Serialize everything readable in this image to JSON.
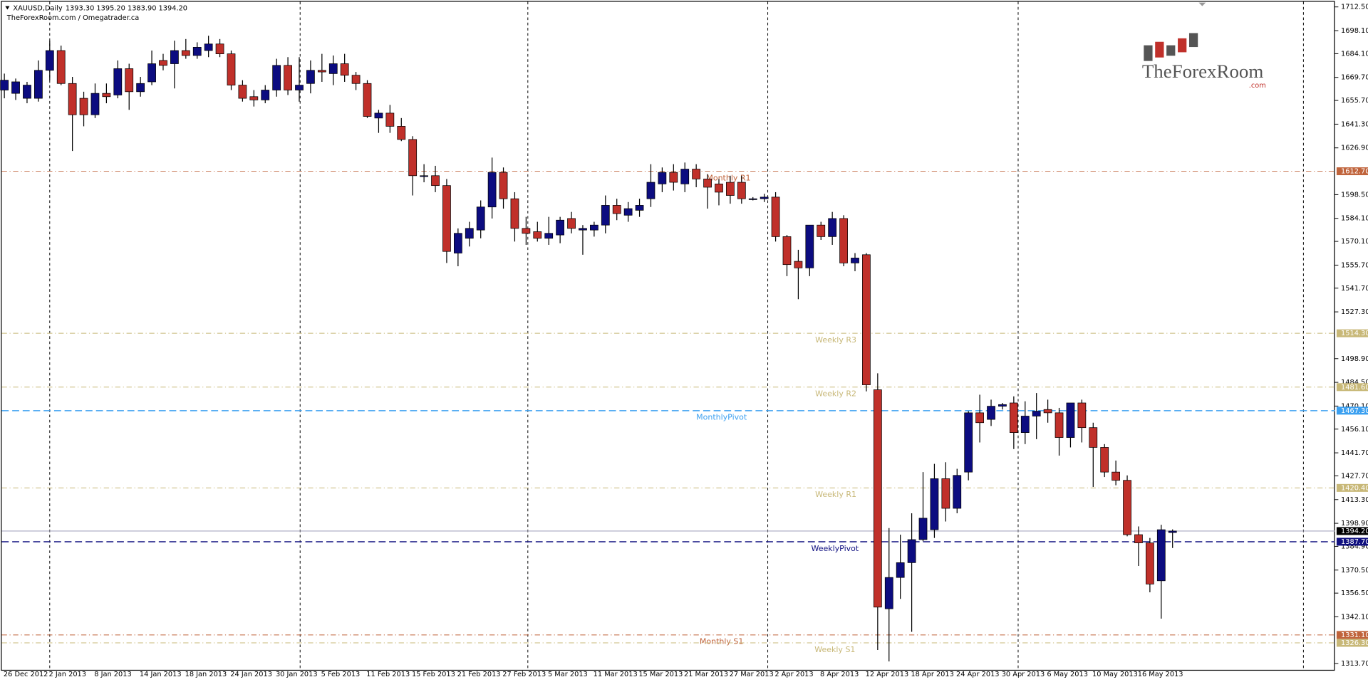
{
  "chart_data": {
    "type": "candlestick",
    "title": "XAUUSD,Daily",
    "ohlc_text": "1393.30 1395.20 1383.90 1394.20",
    "source": "TheForexRoom.com / Omegatrader.ca",
    "logo": {
      "name": "TheForexRoom",
      "suffix": ".com"
    },
    "categories": [
      "26 Dec 2012",
      null,
      null,
      null,
      "2 Jan 2013",
      null,
      null,
      null,
      "8 Jan 2013",
      null,
      null,
      null,
      "14 Jan 2013",
      null,
      null,
      null,
      "18 Jan 2013",
      null,
      null,
      null,
      "24 Jan 2013",
      null,
      null,
      null,
      "30 Jan 2013",
      null,
      null,
      null,
      "5 Feb 2013",
      null,
      null,
      null,
      "11 Feb 2013",
      null,
      null,
      null,
      "15 Feb 2013",
      null,
      null,
      null,
      "21 Feb 2013",
      null,
      null,
      null,
      "27 Feb 2013",
      null,
      null,
      null,
      "5 Mar 2013",
      null,
      null,
      null,
      "11 Mar 2013",
      null,
      null,
      null,
      "15 Mar 2013",
      null,
      null,
      null,
      "21 Mar 2013",
      null,
      null,
      null,
      "27 Mar 2013",
      null,
      null,
      null,
      "2 Apr 2013",
      null,
      null,
      null,
      "8 Apr 2013",
      null,
      null,
      null,
      "12 Apr 2013",
      null,
      null,
      null,
      "18 Apr 2013",
      null,
      null,
      null,
      "24 Apr 2013",
      null,
      null,
      null,
      "30 Apr 2013",
      null,
      null,
      null,
      "6 May 2013",
      null,
      null,
      null,
      "10 May 2013",
      null,
      null,
      null,
      "16 May 2013",
      null,
      null,
      null
    ],
    "open": [
      1662,
      1660,
      1657,
      1657,
      1674,
      1686,
      1666,
      1657,
      1647,
      1660,
      1659,
      1675,
      1661,
      1667,
      1680,
      1678,
      1686,
      1683,
      1686,
      1690,
      1684,
      1665,
      1658,
      1656,
      1662,
      1677,
      1662,
      1666,
      1674,
      1672,
      1678,
      1671,
      1666,
      1645,
      1648,
      1640,
      1632,
      1610,
      1610,
      1604,
      1563,
      1572,
      1577,
      1591,
      1612,
      1596,
      1578,
      1576,
      1572,
      1574,
      1584,
      1577,
      1577,
      1580,
      1592,
      1586,
      1589,
      1596,
      1605,
      1612,
      1605,
      1614,
      1608,
      1605,
      1606,
      1606,
      1596,
      1596,
      1597,
      1573,
      1558,
      1554,
      1580,
      1573,
      1584,
      1557,
      1562,
      1480,
      1347,
      1366,
      1375,
      1389,
      1395,
      1426,
      1408,
      1430,
      1466,
      1462,
      1470,
      1472,
      1454,
      1464,
      1468,
      1466,
      1451,
      1472,
      1457,
      1445,
      1430,
      1425,
      1392,
      1387,
      1364,
      1393.3
    ],
    "high": [
      1672,
      1669,
      1667,
      1680,
      1692,
      1689,
      1670,
      1661,
      1666,
      1666,
      1680,
      1678,
      1670,
      1686,
      1684,
      1692,
      1693,
      1691,
      1695,
      1693,
      1686,
      1668,
      1662,
      1665,
      1681,
      1682,
      1682,
      1680,
      1684,
      1683,
      1684,
      1673,
      1668,
      1650,
      1653,
      1645,
      1634,
      1617,
      1616,
      1608,
      1578,
      1582,
      1595,
      1621,
      1615,
      1600,
      1585,
      1582,
      1585,
      1585,
      1588,
      1580,
      1582,
      1598,
      1596,
      1594,
      1596,
      1617,
      1615,
      1617,
      1618,
      1617,
      1611,
      1608,
      1610,
      1610,
      1597,
      1599,
      1600,
      1574,
      1565,
      1580,
      1582,
      1588,
      1586,
      1563,
      1563,
      1490,
      1396,
      1392,
      1405,
      1430,
      1435,
      1436,
      1432,
      1467,
      1477,
      1474,
      1472,
      1476,
      1473,
      1478,
      1474,
      1469,
      1472,
      1474,
      1460,
      1447,
      1437,
      1428,
      1397,
      1390,
      1398,
      1395.2
    ],
    "low": [
      1657,
      1656,
      1654,
      1655,
      1668,
      1665,
      1625,
      1640,
      1645,
      1654,
      1657,
      1650,
      1658,
      1665,
      1674,
      1663,
      1681,
      1681,
      1682,
      1682,
      1662,
      1655,
      1652,
      1654,
      1658,
      1659,
      1655,
      1660,
      1667,
      1665,
      1667,
      1662,
      1645,
      1636,
      1636,
      1631,
      1598,
      1606,
      1600,
      1557,
      1555,
      1567,
      1572,
      1584,
      1590,
      1570,
      1568,
      1570,
      1568,
      1569,
      1575,
      1562,
      1573,
      1575,
      1583,
      1582,
      1585,
      1591,
      1600,
      1601,
      1600,
      1603,
      1590,
      1592,
      1593,
      1593,
      1595,
      1594,
      1570,
      1549,
      1535,
      1549,
      1571,
      1568,
      1555,
      1552,
      1479,
      1322,
      1315,
      1353,
      1333,
      1388,
      1390,
      1400,
      1405,
      1425,
      1448,
      1458,
      1468,
      1444,
      1447,
      1450,
      1460,
      1440,
      1445,
      1448,
      1421,
      1427,
      1422,
      1391,
      1373,
      1357,
      1341,
      1383.9
    ],
    "close": [
      1668,
      1667,
      1665,
      1674,
      1686,
      1666,
      1647,
      1647,
      1660,
      1658,
      1675,
      1661,
      1666,
      1678,
      1677,
      1686,
      1683,
      1688,
      1690,
      1684,
      1665,
      1657,
      1656,
      1662,
      1677,
      1662,
      1665,
      1674,
      1673,
      1678,
      1671,
      1666,
      1646,
      1648,
      1640,
      1632,
      1610,
      1610,
      1604,
      1564,
      1575,
      1578,
      1591,
      1612,
      1596,
      1578,
      1575,
      1572,
      1575,
      1583,
      1578,
      1578,
      1580,
      1592,
      1587,
      1590,
      1592,
      1606,
      1612,
      1606,
      1614,
      1608,
      1603,
      1600,
      1598,
      1596,
      1596,
      1597,
      1573,
      1556,
      1554,
      1580,
      1573,
      1584,
      1557,
      1560,
      1483,
      1348,
      1366,
      1375,
      1389,
      1402,
      1426,
      1408,
      1428,
      1466,
      1460,
      1470,
      1471,
      1454,
      1464,
      1467,
      1466,
      1451,
      1472,
      1457,
      1445,
      1430,
      1425,
      1392,
      1387,
      1362,
      1395,
      1394.2
    ],
    "up_color": "#0c0c80",
    "down_color": "#c0302a",
    "last_price_label": "1394.20",
    "ylim": [
      1309.4,
      1716.7
    ],
    "yticks": [
      {
        "value": 1712.5,
        "label": "1712.50"
      },
      {
        "value": 1698.1,
        "label": "1698.10"
      },
      {
        "value": 1684.1,
        "label": "1684.10"
      },
      {
        "value": 1669.7,
        "label": "1669.70"
      },
      {
        "value": 1655.7,
        "label": "1655.70"
      },
      {
        "value": 1641.3,
        "label": "1641.30"
      },
      {
        "value": 1626.9,
        "label": "1626.90"
      },
      {
        "value": 1598.5,
        "label": "1598.50"
      },
      {
        "value": 1584.1,
        "label": "1584.10"
      },
      {
        "value": 1570.1,
        "label": "1570.10"
      },
      {
        "value": 1555.7,
        "label": "1555.70"
      },
      {
        "value": 1541.7,
        "label": "1541.70"
      },
      {
        "value": 1527.3,
        "label": "1527.30"
      },
      {
        "value": 1498.9,
        "label": "1498.90"
      },
      {
        "value": 1484.5,
        "label": "1484.50"
      },
      {
        "value": 1470.1,
        "label": "1470.10"
      },
      {
        "value": 1456.1,
        "label": "1456.10"
      },
      {
        "value": 1441.7,
        "label": "1441.70"
      },
      {
        "value": 1427.7,
        "label": "1427.70"
      },
      {
        "value": 1413.3,
        "label": "1413.30"
      },
      {
        "value": 1398.9,
        "label": "1398.90"
      },
      {
        "value": 1384.9,
        "label": "1384.90"
      },
      {
        "value": 1370.5,
        "label": "1370.50"
      },
      {
        "value": 1356.5,
        "label": "1356.50"
      },
      {
        "value": 1342.1,
        "label": "1342.10"
      },
      {
        "value": 1313.7,
        "label": "1313.70"
      }
    ],
    "levels": [
      {
        "name": "Monthly R1",
        "value": 1612.7,
        "label": "1612.70",
        "color": "#c0643c",
        "style": "dashdot"
      },
      {
        "name": "Weekly R3",
        "value": 1514.3,
        "label": "1514.30",
        "color": "#c8b878",
        "style": "dashdot"
      },
      {
        "name": "Weekly R2",
        "value": 1481.6,
        "label": "1481.60",
        "color": "#c8b878",
        "style": "dashdot"
      },
      {
        "name": "MonthlyPivot",
        "value": 1467.3,
        "label": "1467.30",
        "color": "#3ca0f0",
        "style": "dashed"
      },
      {
        "name": "Weekly R1",
        "value": 1420.4,
        "label": "1420.40",
        "color": "#c8b878",
        "style": "dashdot"
      },
      {
        "name": "WeeklyPivot",
        "value": 1387.7,
        "label": "1387.70",
        "color": "#101080",
        "style": "dashed"
      },
      {
        "name": "Monthly S1",
        "value": 1331.1,
        "label": "1331.10",
        "color": "#c0643c",
        "style": "dashdot"
      },
      {
        "name": "Weekly S1",
        "value": 1326.3,
        "label": "1326.30",
        "color": "#c8b878",
        "style": "dashdot"
      }
    ]
  }
}
